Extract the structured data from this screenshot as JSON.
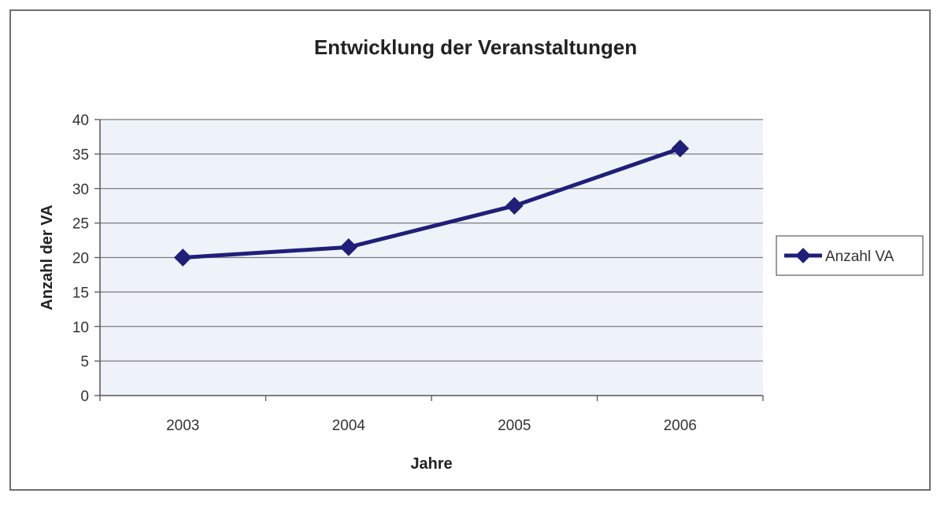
{
  "chart_data": {
    "type": "line",
    "title": "Entwicklung der Veranstaltungen",
    "xlabel": "Jahre",
    "ylabel": "Anzahl der VA",
    "categories": [
      "2003",
      "2004",
      "2005",
      "2006"
    ],
    "series": [
      {
        "name": "Anzahl VA",
        "values": [
          20,
          21.5,
          27.5,
          35.8
        ]
      }
    ],
    "ylim": [
      0,
      40
    ],
    "yticks": [
      "0",
      "5",
      "10",
      "15",
      "20",
      "25",
      "30",
      "35",
      "40"
    ],
    "grid": true,
    "legend": "right",
    "colors": {
      "line": "#1f1f7a",
      "grid": "#7a7a7a",
      "plot_bg": "#eef3fa"
    }
  }
}
